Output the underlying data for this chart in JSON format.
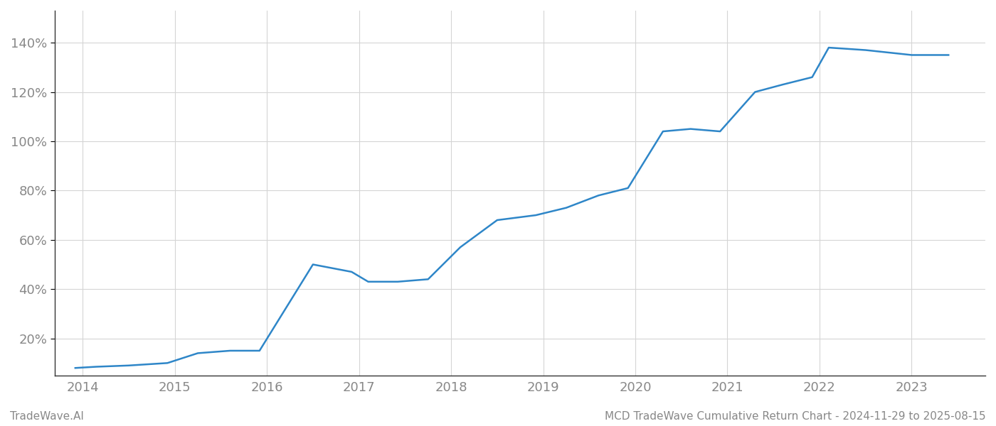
{
  "x_values": [
    2013.92,
    2014.15,
    2014.5,
    2014.92,
    2015.25,
    2015.6,
    2015.92,
    2016.5,
    2016.92,
    2017.1,
    2017.42,
    2017.75,
    2018.1,
    2018.5,
    2018.92,
    2019.25,
    2019.6,
    2019.92,
    2020.3,
    2020.6,
    2020.92,
    2021.3,
    2021.6,
    2021.92,
    2022.1,
    2022.5,
    2022.75,
    2023.0,
    2023.4
  ],
  "y_values": [
    8,
    8.5,
    9,
    10,
    14,
    15,
    15,
    50,
    47,
    43,
    43,
    44,
    57,
    68,
    70,
    73,
    78,
    81,
    104,
    105,
    104,
    120,
    123,
    126,
    138,
    137,
    136,
    135,
    135
  ],
  "line_color": "#2e86c8",
  "line_width": 1.8,
  "title": "MCD TradeWave Cumulative Return Chart - 2024-11-29 to 2025-08-15",
  "watermark": "TradeWave.AI",
  "xlim": [
    2013.7,
    2023.8
  ],
  "ylim": [
    5,
    153
  ],
  "xtick_labels": [
    "2014",
    "2015",
    "2016",
    "2017",
    "2018",
    "2019",
    "2020",
    "2021",
    "2022",
    "2023"
  ],
  "xtick_positions": [
    2014,
    2015,
    2016,
    2017,
    2018,
    2019,
    2020,
    2021,
    2022,
    2023
  ],
  "ytick_positions": [
    20,
    40,
    60,
    80,
    100,
    120,
    140
  ],
  "ytick_labels": [
    "20%",
    "40%",
    "60%",
    "80%",
    "100%",
    "120%",
    "140%"
  ],
  "grid_color": "#d5d5d5",
  "background_color": "#ffffff",
  "title_fontsize": 11,
  "watermark_fontsize": 11,
  "tick_label_color": "#888888",
  "tick_label_fontsize": 13,
  "spine_color": "#333333"
}
